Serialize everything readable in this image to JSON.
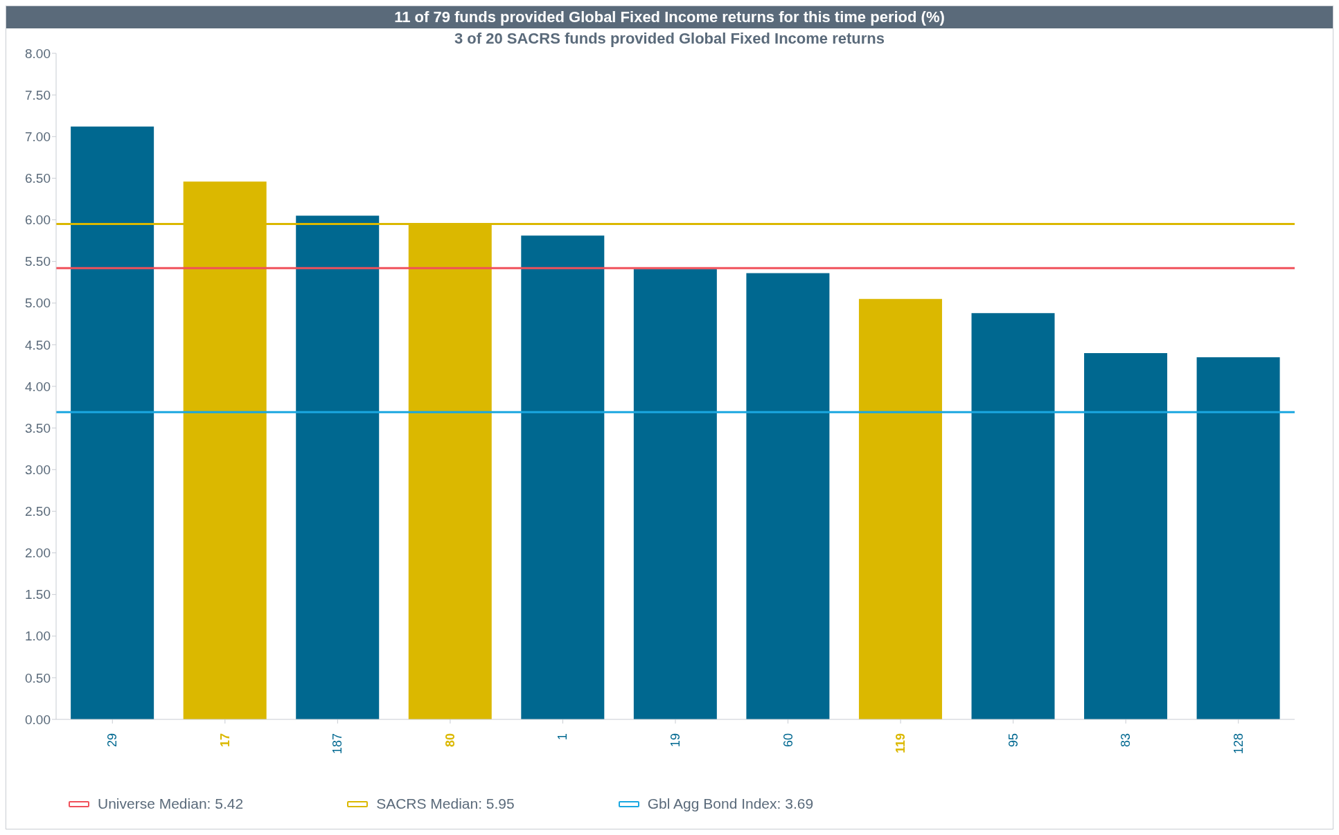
{
  "chart_data": {
    "type": "bar",
    "title": "11 of 79 funds provided Global Fixed Income returns for this time period (%)",
    "subtitle": "3 of 20 SACRS funds provided Global Fixed Income returns",
    "categories": [
      "29",
      "17",
      "187",
      "80",
      "1",
      "19",
      "60",
      "119",
      "95",
      "83",
      "128"
    ],
    "values": [
      7.12,
      6.46,
      6.05,
      5.95,
      5.81,
      5.41,
      5.36,
      5.05,
      4.88,
      4.4,
      4.35
    ],
    "colors": [
      "#006890",
      "#dbb800",
      "#006890",
      "#dbb800",
      "#006890",
      "#006890",
      "#006890",
      "#dbb800",
      "#006890",
      "#006890",
      "#006890"
    ],
    "ylim": [
      0,
      8
    ],
    "yticks": [
      {
        "value": 0,
        "label": "0.00"
      },
      {
        "value": 0.5,
        "label": "0.50"
      },
      {
        "value": 1,
        "label": "1.00"
      },
      {
        "value": 1.5,
        "label": "1.50"
      },
      {
        "value": 2,
        "label": "2.00"
      },
      {
        "value": 2.5,
        "label": "2.50"
      },
      {
        "value": 3,
        "label": "3.00"
      },
      {
        "value": 3.5,
        "label": "3.50"
      },
      {
        "value": 4,
        "label": "4.00"
      },
      {
        "value": 4.5,
        "label": "4.50"
      },
      {
        "value": 5,
        "label": "5.00"
      },
      {
        "value": 5.5,
        "label": "5.50"
      },
      {
        "value": 6,
        "label": "6.00"
      },
      {
        "value": 6.5,
        "label": "6.50"
      },
      {
        "value": 7,
        "label": "7.00"
      },
      {
        "value": 7.5,
        "label": "7.50"
      },
      {
        "value": 8,
        "label": "8.00"
      }
    ],
    "ref_lines": [
      {
        "axis": "y",
        "value": 5.42,
        "label": "Universe Median: 5.42",
        "color": "#f0505a"
      },
      {
        "axis": "y",
        "value": 5.95,
        "label": "SACRS Median: 5.95",
        "color": "#dbb800"
      },
      {
        "axis": "y",
        "value": 3.69,
        "label": "Gbl Agg Bond Index: 3.69",
        "color": "#1aa7e0"
      }
    ],
    "legend": "bottom"
  }
}
